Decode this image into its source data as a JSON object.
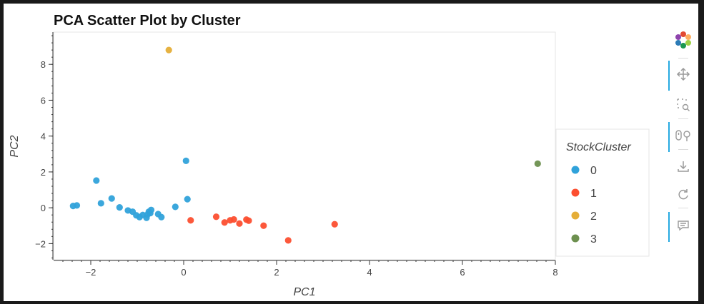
{
  "chart_data": {
    "type": "scatter",
    "title": "PCA Scatter Plot by Cluster",
    "xlabel": "PC1",
    "ylabel": "PC2",
    "xlim": [
      -2.8,
      8.0
    ],
    "ylim": [
      -2.9,
      9.8
    ],
    "x_ticks": [
      -2,
      0,
      2,
      4,
      6,
      8
    ],
    "x_tick_labels": [
      "−2",
      "0",
      "2",
      "4",
      "6",
      "8"
    ],
    "y_ticks": [
      -2,
      0,
      2,
      4,
      6,
      8
    ],
    "y_tick_labels": [
      "−2",
      "0",
      "2",
      "4",
      "6",
      "8"
    ],
    "grid": false,
    "legend": {
      "title": "StockCluster",
      "placement": "right",
      "entries": [
        "0",
        "1",
        "2",
        "3"
      ]
    },
    "colors": {
      "0": "#30a2da",
      "1": "#fc4f30",
      "2": "#e5ae38",
      "3": "#6d904f"
    },
    "series": [
      {
        "name": "0",
        "points": [
          [
            -2.38,
            0.1
          ],
          [
            -2.3,
            0.13
          ],
          [
            -1.88,
            1.52
          ],
          [
            -1.78,
            0.25
          ],
          [
            -1.55,
            0.52
          ],
          [
            -1.38,
            0.02
          ],
          [
            -1.2,
            -0.15
          ],
          [
            -1.1,
            -0.22
          ],
          [
            -1.02,
            -0.42
          ],
          [
            -0.95,
            -0.52
          ],
          [
            -0.88,
            -0.4
          ],
          [
            -0.8,
            -0.56
          ],
          [
            -0.78,
            -0.38
          ],
          [
            -0.75,
            -0.22
          ],
          [
            -0.72,
            -0.3
          ],
          [
            -0.7,
            -0.12
          ],
          [
            -0.55,
            -0.35
          ],
          [
            -0.48,
            -0.52
          ],
          [
            -0.18,
            0.05
          ],
          [
            0.05,
            2.62
          ],
          [
            0.08,
            0.48
          ]
        ]
      },
      {
        "name": "1",
        "points": [
          [
            0.15,
            -0.7
          ],
          [
            0.7,
            -0.5
          ],
          [
            0.88,
            -0.82
          ],
          [
            1.0,
            -0.7
          ],
          [
            1.08,
            -0.65
          ],
          [
            1.2,
            -0.88
          ],
          [
            1.35,
            -0.66
          ],
          [
            1.4,
            -0.72
          ],
          [
            1.72,
            -1.0
          ],
          [
            2.25,
            -1.82
          ],
          [
            3.25,
            -0.92
          ]
        ]
      },
      {
        "name": "2",
        "points": [
          [
            -0.32,
            8.8
          ]
        ]
      },
      {
        "name": "3",
        "points": [
          [
            7.62,
            2.46
          ]
        ]
      }
    ]
  },
  "toolbar": {
    "tools": [
      {
        "name": "bokeh-logo-icon",
        "active": false,
        "interactable": false
      },
      {
        "name": "pan-icon",
        "active": true,
        "interactable": true
      },
      {
        "name": "box-zoom-icon",
        "active": false,
        "interactable": true
      },
      {
        "name": "wheel-zoom-icon",
        "active": true,
        "interactable": true
      },
      {
        "name": "save-icon",
        "active": false,
        "interactable": true
      },
      {
        "name": "reset-icon",
        "active": false,
        "interactable": true
      },
      {
        "name": "hover-icon",
        "active": true,
        "interactable": true
      }
    ]
  }
}
